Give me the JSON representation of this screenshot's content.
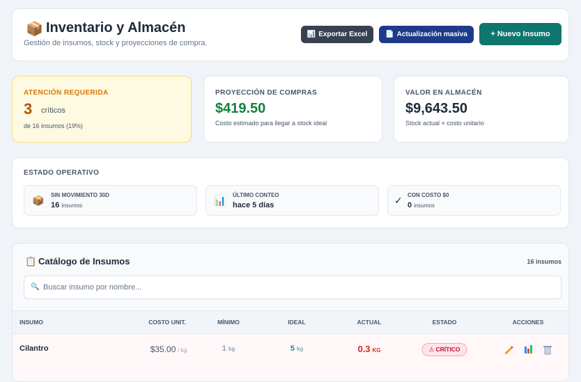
{
  "header": {
    "icon": "📦",
    "title": "Inventario y Almacén",
    "subtitle": "Gestión de insumos, stock y proyecciones de compra.",
    "buttons": [
      {
        "icon": "📊",
        "label": "Exportar Excel"
      },
      {
        "icon": "📄",
        "label": "Actualización masiva"
      },
      {
        "label": "+ Nuevo Insumo"
      }
    ]
  },
  "cards": [
    {
      "label": "ATENCIÓN REQUERIDA",
      "value": "3",
      "unit": "críticos",
      "note": "de 16 insumos (19%)"
    },
    {
      "label": "PROYECCIÓN DE COMPRAS",
      "value": "$419.50",
      "note": "Costo estimado para llegar a stock ideal"
    },
    {
      "label": "VALOR EN ALMACÉN",
      "value": "$9,643.50",
      "note": "Stock actual × costo unitario"
    }
  ],
  "status": {
    "title": "ESTADO OPERATIVO",
    "items": [
      {
        "icon": "📦",
        "label": "SIN MOVIMIENTO 30D",
        "value": "16",
        "unit": "insumos"
      },
      {
        "icon": "📊",
        "label": "ÚLTIMO CONTEO",
        "value": "hace 5 días"
      },
      {
        "icon": "✓",
        "label": "CON COSTO $0",
        "value": "0",
        "unit": "insumos"
      }
    ]
  },
  "catalog": {
    "icon": "📋",
    "title": "Catálogo de Insumos",
    "count": "16 insumos",
    "search_icon": "🔍",
    "search_placeholder": "Buscar insumo por nombre...",
    "columns": [
      "INSUMO",
      "COSTO UNIT.",
      "MÍNIMO",
      "IDEAL",
      "ACTUAL",
      "ESTADO",
      "ACCIONES"
    ],
    "rows": [
      {
        "name": "Cilantro",
        "cost": "$35.00",
        "cost_unit": "/ kg",
        "min": "1",
        "min_unit": "kg",
        "ideal": "5",
        "ideal_unit": "kg",
        "actual": "0.3",
        "actual_unit": "KG",
        "status": "⚠ CRÍTICO"
      }
    ]
  }
}
